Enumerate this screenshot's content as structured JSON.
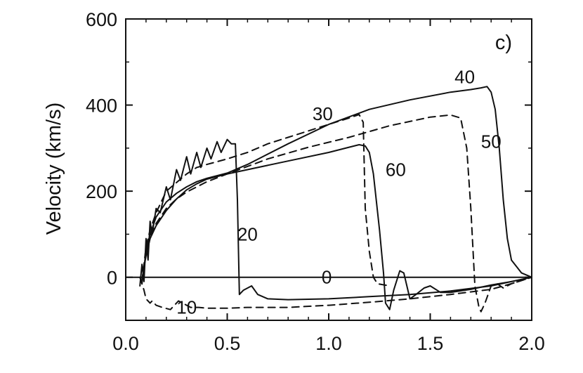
{
  "chart_data": {
    "type": "line",
    "panel_label": "c)",
    "xlabel": "",
    "ylabel": "Velocity (km/s)",
    "xlim": [
      0.0,
      2.0
    ],
    "ylim": [
      -100,
      600
    ],
    "xticks": [
      "0.0",
      "0.5",
      "1.0",
      "1.5",
      "2.0"
    ],
    "yticks": [
      "0",
      "200",
      "400",
      "600"
    ],
    "xtick_values": [
      0.0,
      0.5,
      1.0,
      1.5,
      2.0
    ],
    "ytick_values": [
      0,
      200,
      400,
      600
    ],
    "grid": false,
    "legend": "none",
    "series": [
      {
        "name": "0",
        "style": "solid",
        "x": [
          0.0,
          2.0
        ],
        "values": [
          0,
          0
        ]
      },
      {
        "name": "10",
        "style": "dashed",
        "x": [
          0.07,
          0.09,
          0.1,
          0.12,
          0.13,
          0.15,
          0.18,
          0.22,
          0.26,
          0.28,
          0.32,
          0.36,
          0.4,
          0.5,
          0.6,
          0.8,
          1.0,
          1.2,
          1.4,
          1.6,
          1.8,
          1.9,
          2.0
        ],
        "values": [
          0,
          -30,
          -50,
          -60,
          -55,
          -65,
          -70,
          -75,
          -55,
          -60,
          -70,
          -70,
          -72,
          -72,
          -70,
          -70,
          -65,
          -58,
          -50,
          -40,
          -28,
          -15,
          0
        ]
      },
      {
        "name": "20",
        "style": "solid",
        "x": [
          0.07,
          0.08,
          0.09,
          0.1,
          0.11,
          0.12,
          0.13,
          0.15,
          0.17,
          0.2,
          0.22,
          0.25,
          0.27,
          0.3,
          0.32,
          0.35,
          0.37,
          0.4,
          0.42,
          0.45,
          0.47,
          0.5,
          0.52,
          0.54,
          0.55,
          0.56,
          0.58,
          0.62,
          0.65,
          0.7,
          0.8,
          1.0,
          1.2,
          1.4,
          1.6,
          1.8,
          2.0
        ],
        "values": [
          -20,
          30,
          -10,
          90,
          40,
          130,
          100,
          160,
          150,
          210,
          180,
          250,
          225,
          280,
          240,
          290,
          255,
          300,
          275,
          315,
          290,
          320,
          310,
          310,
          180,
          -40,
          -30,
          -20,
          -40,
          -50,
          -52,
          -50,
          -45,
          -40,
          -32,
          -20,
          0
        ]
      },
      {
        "name": "30",
        "style": "dashed",
        "x": [
          0.08,
          0.1,
          0.12,
          0.15,
          0.2,
          0.25,
          0.3,
          0.35,
          0.4,
          0.5,
          0.6,
          0.7,
          0.8,
          0.9,
          1.0,
          1.1,
          1.15,
          1.17,
          1.18,
          1.2,
          1.22,
          1.24,
          1.3
        ],
        "values": [
          -10,
          70,
          110,
          150,
          200,
          220,
          240,
          255,
          262,
          275,
          290,
          310,
          325,
          340,
          355,
          370,
          378,
          360,
          160,
          60,
          0,
          -15,
          -20
        ]
      },
      {
        "name": "40",
        "style": "solid",
        "x": [
          0.08,
          0.1,
          0.12,
          0.15,
          0.2,
          0.25,
          0.3,
          0.35,
          0.4,
          0.5,
          0.6,
          0.8,
          1.0,
          1.2,
          1.4,
          1.6,
          1.7,
          1.75,
          1.78,
          1.8,
          1.82,
          1.84,
          1.86,
          1.88,
          1.9,
          1.95,
          2.0
        ],
        "values": [
          -15,
          60,
          100,
          140,
          175,
          195,
          210,
          222,
          230,
          242,
          262,
          310,
          355,
          390,
          412,
          430,
          436,
          440,
          443,
          430,
          390,
          300,
          180,
          90,
          40,
          10,
          0
        ]
      },
      {
        "name": "50",
        "style": "dashed",
        "x": [
          0.08,
          0.1,
          0.12,
          0.15,
          0.2,
          0.25,
          0.3,
          0.4,
          0.5,
          0.7,
          0.9,
          1.1,
          1.3,
          1.5,
          1.6,
          1.65,
          1.68,
          1.7,
          1.72,
          1.74,
          1.75,
          1.77,
          1.8,
          1.83,
          1.86,
          1.9,
          2.0
        ],
        "values": [
          -10,
          60,
          95,
          125,
          160,
          182,
          198,
          222,
          240,
          275,
          302,
          325,
          352,
          372,
          377,
          370,
          300,
          160,
          -20,
          -70,
          -80,
          -60,
          -20,
          -15,
          -25,
          -15,
          0
        ]
      },
      {
        "name": "60",
        "style": "solid",
        "x": [
          0.08,
          0.1,
          0.12,
          0.15,
          0.2,
          0.25,
          0.3,
          0.35,
          0.4,
          0.5,
          0.6,
          0.8,
          1.0,
          1.1,
          1.15,
          1.18,
          1.2,
          1.22,
          1.25,
          1.27,
          1.28,
          1.3,
          1.32,
          1.35,
          1.37,
          1.4,
          1.43,
          1.47,
          1.5,
          1.55,
          1.6,
          1.7,
          1.8,
          1.9,
          2.0
        ],
        "values": [
          -5,
          50,
          90,
          120,
          155,
          182,
          203,
          217,
          228,
          240,
          250,
          270,
          290,
          302,
          308,
          305,
          290,
          240,
          110,
          10,
          -60,
          -75,
          -30,
          15,
          10,
          -50,
          -40,
          -25,
          -20,
          -35,
          -35,
          -28,
          -18,
          -10,
          0
        ]
      }
    ],
    "curve_labels": [
      {
        "text": "0",
        "x": 0.99,
        "y": 0
      },
      {
        "text": "10",
        "x": 0.3,
        "y": -70
      },
      {
        "text": "20",
        "x": 0.6,
        "y": 100
      },
      {
        "text": "30",
        "x": 0.97,
        "y": 380
      },
      {
        "text": "40",
        "x": 1.67,
        "y": 465
      },
      {
        "text": "50",
        "x": 1.8,
        "y": 315
      },
      {
        "text": "60",
        "x": 1.33,
        "y": 250
      }
    ]
  }
}
